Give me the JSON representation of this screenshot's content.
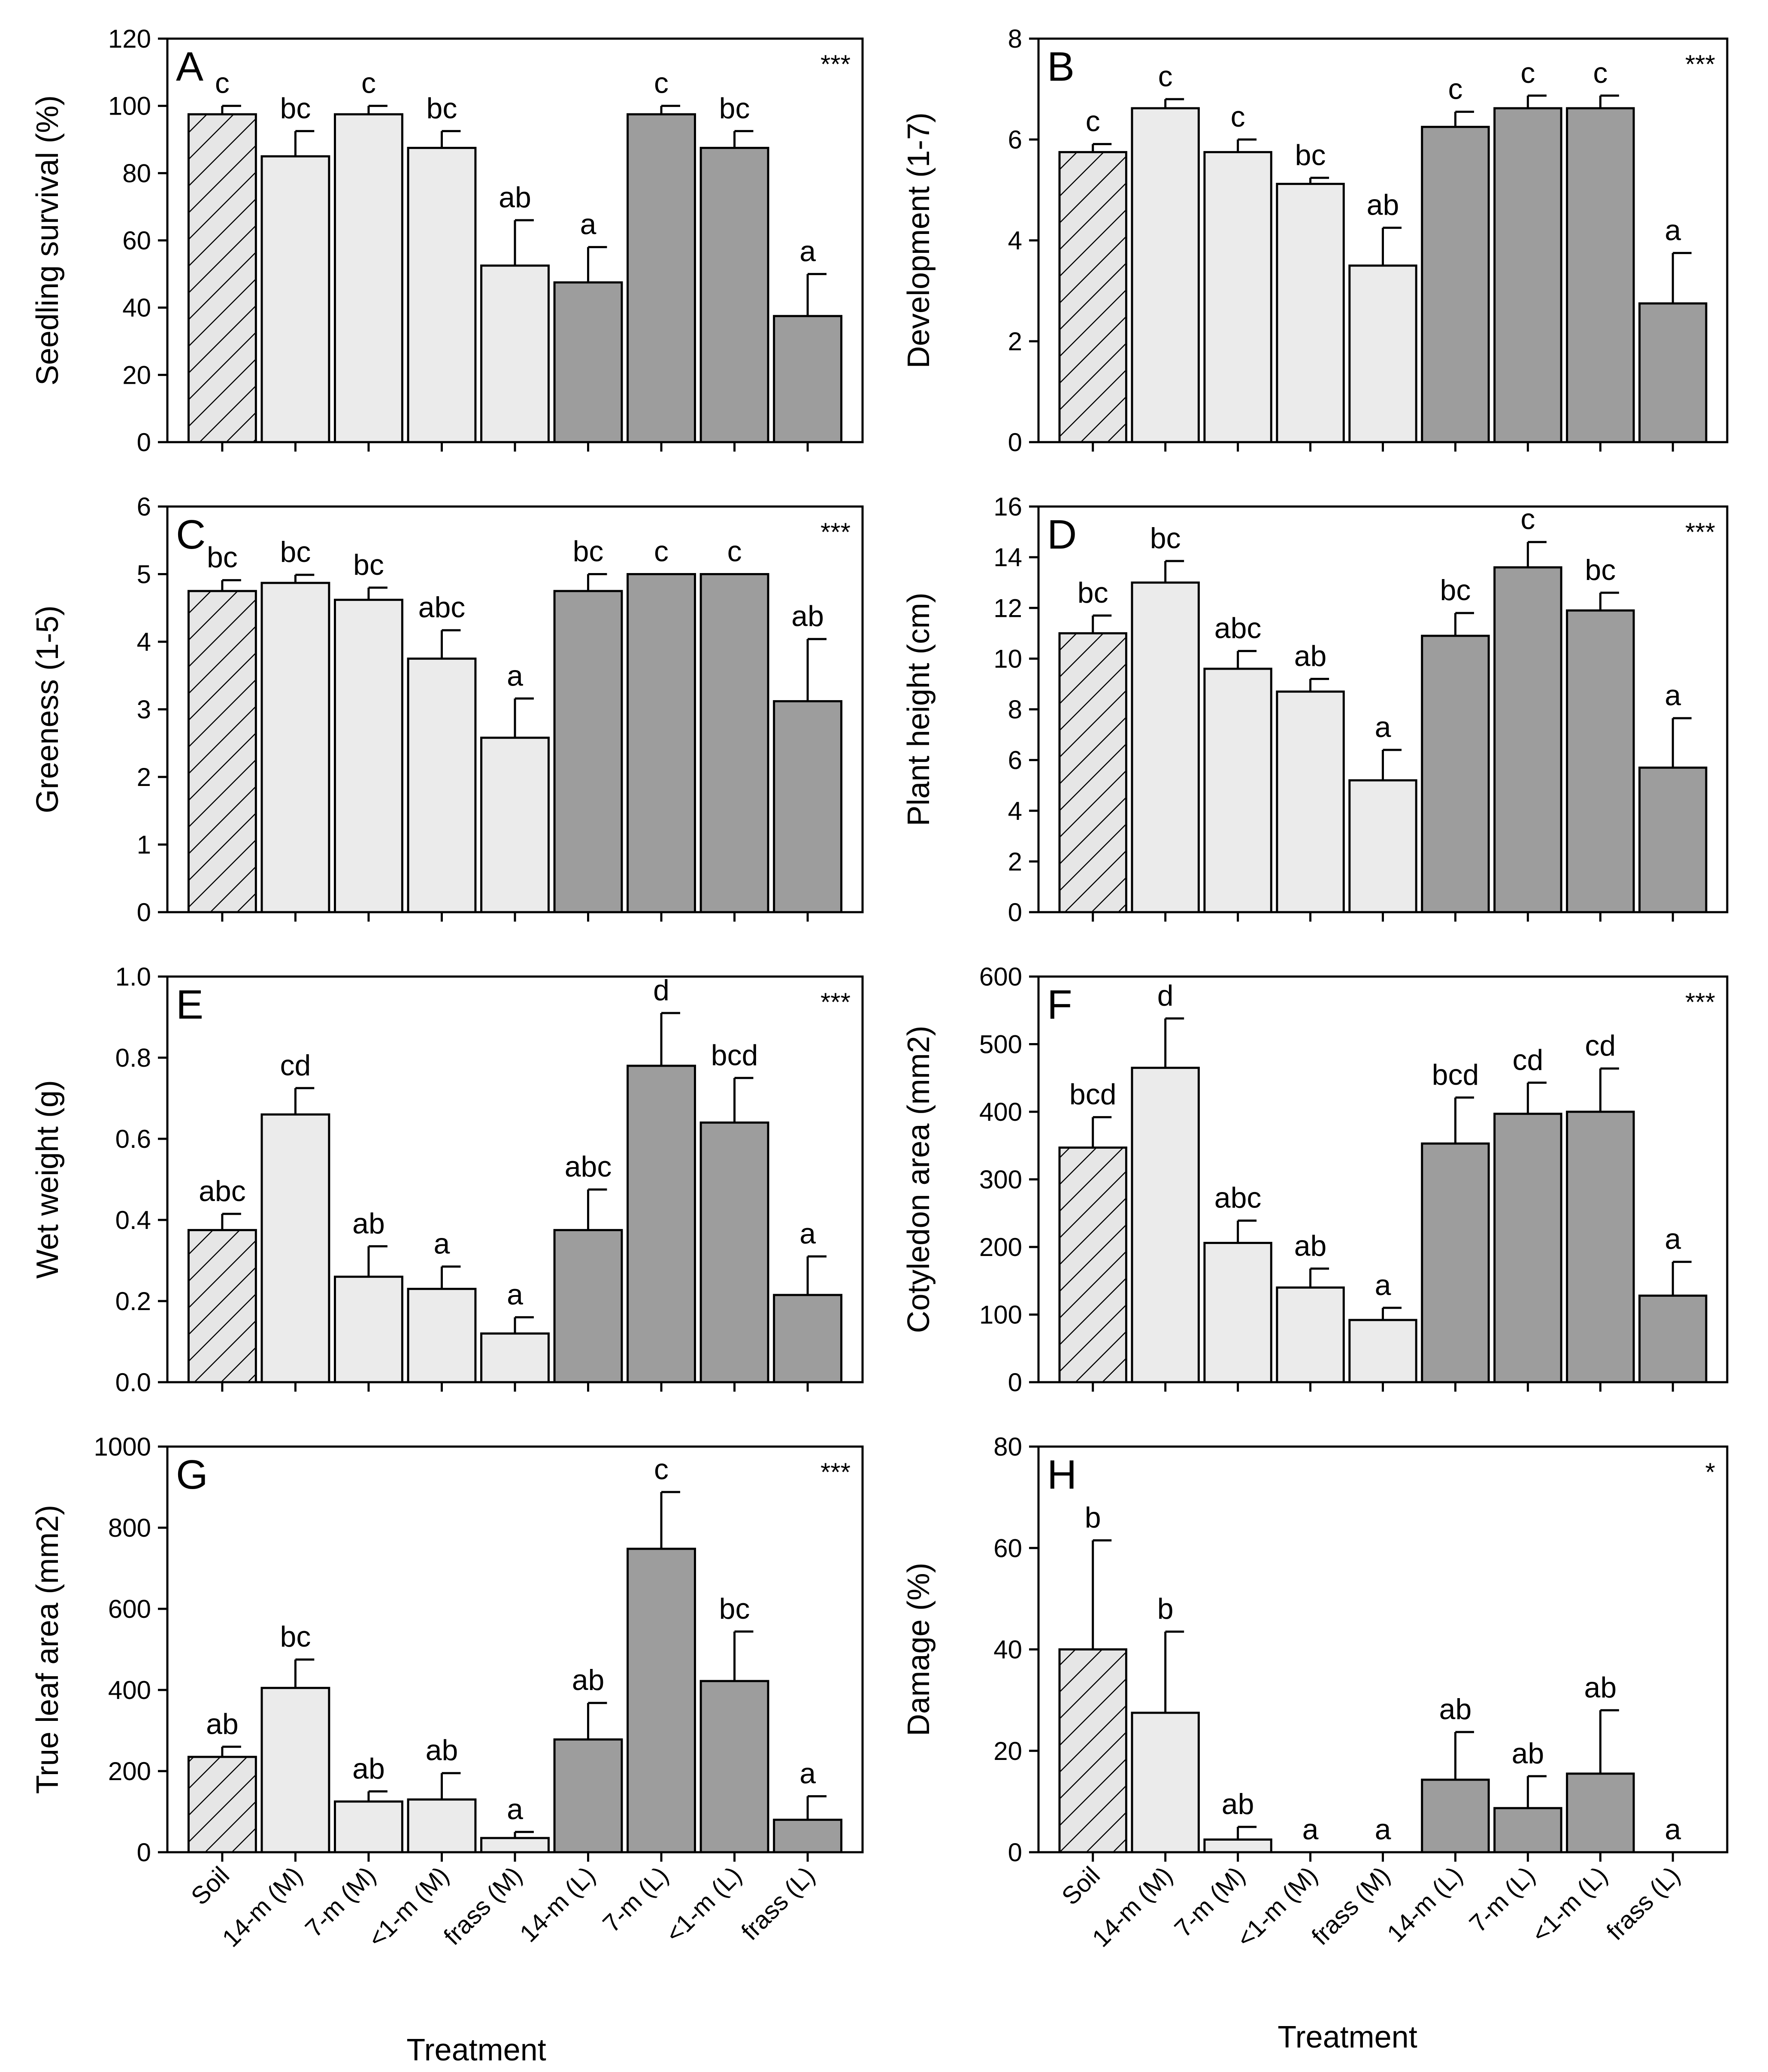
{
  "colors": {
    "soil_fill": "#e6e6e6",
    "medium_fill": "#ebebeb",
    "large_fill": "#9d9d9d",
    "stroke": "#000000"
  },
  "x_axis": {
    "title": "Treatment",
    "categories": [
      "Soil",
      "14-m (M)",
      "7-m (M)",
      "<1-m (M)",
      "frass (M)",
      "14-m (L)",
      "7-m (L)",
      "<1-m (L)",
      "frass (L)"
    ],
    "groups": [
      "soil",
      "M",
      "M",
      "M",
      "M",
      "L",
      "L",
      "L",
      "L"
    ]
  },
  "chart_data": [
    {
      "panel": "A",
      "type": "bar",
      "ylabel": "Seedling survival (%)",
      "significance": "***",
      "ylim": [
        0,
        120
      ],
      "yticks": [
        0,
        20,
        40,
        60,
        80,
        100,
        120
      ],
      "ytick_labels": [
        "0",
        "20",
        "40",
        "60",
        "80",
        "100",
        "120"
      ],
      "values": [
        97.5,
        85,
        97.5,
        87.5,
        52.5,
        47.5,
        97.5,
        87.5,
        37.5
      ],
      "errors": [
        2.5,
        7.5,
        2.5,
        5,
        13.5,
        10.5,
        2.5,
        5,
        12.5
      ],
      "letters": [
        "c",
        "bc",
        "c",
        "bc",
        "ab",
        "a",
        "c",
        "bc",
        "a"
      ]
    },
    {
      "panel": "B",
      "type": "bar",
      "ylabel": "Development (1-7)",
      "significance": "***",
      "ylim": [
        0,
        8
      ],
      "yticks": [
        0,
        2,
        4,
        6,
        8
      ],
      "ytick_labels": [
        "0",
        "2",
        "4",
        "6",
        "8"
      ],
      "values": [
        5.75,
        6.62,
        5.75,
        5.12,
        3.5,
        6.25,
        6.62,
        6.62,
        2.75
      ],
      "errors": [
        0.16,
        0.18,
        0.25,
        0.12,
        0.75,
        0.3,
        0.25,
        0.25,
        1.0
      ],
      "letters": [
        "c",
        "c",
        "c",
        "bc",
        "ab",
        "c",
        "c",
        "c",
        "a"
      ]
    },
    {
      "panel": "C",
      "type": "bar",
      "ylabel": "Greeness (1-5)",
      "significance": "***",
      "ylim": [
        0,
        6
      ],
      "yticks": [
        0,
        1,
        2,
        3,
        4,
        5,
        6
      ],
      "ytick_labels": [
        "0",
        "1",
        "2",
        "3",
        "4",
        "5",
        "6"
      ],
      "values": [
        4.75,
        4.87,
        4.62,
        3.75,
        2.58,
        4.75,
        5.0,
        5.0,
        3.12
      ],
      "errors": [
        0.16,
        0.12,
        0.18,
        0.42,
        0.58,
        0.25,
        0,
        0,
        0.92
      ],
      "letters": [
        "bc",
        "bc",
        "bc",
        "abc",
        "a",
        "bc",
        "c",
        "c",
        "ab"
      ]
    },
    {
      "panel": "D",
      "type": "bar",
      "ylabel": "Plant height (cm)",
      "significance": "***",
      "ylim": [
        0,
        16
      ],
      "yticks": [
        0,
        2,
        4,
        6,
        8,
        10,
        12,
        14,
        16
      ],
      "ytick_labels": [
        "0",
        "2",
        "4",
        "6",
        "8",
        "10",
        "12",
        "14",
        "16"
      ],
      "values": [
        11.0,
        13.0,
        9.6,
        8.7,
        5.2,
        10.9,
        13.6,
        11.9,
        5.7
      ],
      "errors": [
        0.7,
        0.85,
        0.7,
        0.5,
        1.2,
        0.9,
        1.0,
        0.7,
        1.95
      ],
      "letters": [
        "bc",
        "bc",
        "abc",
        "ab",
        "a",
        "bc",
        "c",
        "bc",
        "a"
      ]
    },
    {
      "panel": "E",
      "type": "bar",
      "ylabel": "Wet weight (g)",
      "significance": "***",
      "ylim": [
        0,
        1.0
      ],
      "yticks": [
        0,
        0.2,
        0.4,
        0.6,
        0.8,
        1.0
      ],
      "ytick_labels": [
        "0.0",
        "0.2",
        "0.4",
        "0.6",
        "0.8",
        "1.0"
      ],
      "values": [
        0.375,
        0.66,
        0.26,
        0.23,
        0.12,
        0.375,
        0.78,
        0.64,
        0.215
      ],
      "errors": [
        0.04,
        0.065,
        0.075,
        0.055,
        0.04,
        0.1,
        0.13,
        0.11,
        0.095
      ],
      "letters": [
        "abc",
        "cd",
        "ab",
        "a",
        "a",
        "abc",
        "d",
        "bcd",
        "a"
      ]
    },
    {
      "panel": "F",
      "type": "bar",
      "ylabel": "Cotyledon area (mm2)",
      "significance": "***",
      "ylim": [
        0,
        600
      ],
      "yticks": [
        0,
        100,
        200,
        300,
        400,
        500,
        600
      ],
      "ytick_labels": [
        "0",
        "100",
        "200",
        "300",
        "400",
        "500",
        "600"
      ],
      "values": [
        347,
        465,
        206,
        140,
        92,
        353,
        397,
        400,
        128
      ],
      "errors": [
        45,
        73,
        33,
        28,
        18,
        68,
        46,
        64,
        50
      ],
      "letters": [
        "bcd",
        "d",
        "abc",
        "ab",
        "a",
        "bcd",
        "cd",
        "cd",
        "a"
      ]
    },
    {
      "panel": "G",
      "type": "bar",
      "ylabel": "True leaf area (mm2)",
      "significance": "***",
      "ylim": [
        0,
        1000
      ],
      "yticks": [
        0,
        200,
        400,
        600,
        800,
        1000
      ],
      "ytick_labels": [
        "0",
        "200",
        "400",
        "600",
        "800",
        "1000"
      ],
      "values": [
        235,
        405,
        125,
        130,
        35,
        278,
        748,
        422,
        80
      ],
      "errors": [
        25,
        70,
        25,
        65,
        15,
        90,
        140,
        122,
        58
      ],
      "letters": [
        "ab",
        "bc",
        "ab",
        "ab",
        "a",
        "ab",
        "c",
        "bc",
        "a"
      ]
    },
    {
      "panel": "H",
      "type": "bar",
      "ylabel": "Damage (%)",
      "significance": "*",
      "ylim": [
        0,
        80
      ],
      "yticks": [
        0,
        20,
        40,
        60,
        80
      ],
      "ytick_labels": [
        "0",
        "20",
        "40",
        "60",
        "80"
      ],
      "values": [
        40,
        27.5,
        2.5,
        0,
        0,
        14.3,
        8.7,
        15.5,
        0
      ],
      "errors": [
        21.5,
        16,
        2.5,
        0,
        0,
        9.4,
        6.3,
        12.5,
        0
      ],
      "letters": [
        "b",
        "b",
        "ab",
        "a",
        "a",
        "ab",
        "ab",
        "ab",
        "a"
      ]
    }
  ]
}
